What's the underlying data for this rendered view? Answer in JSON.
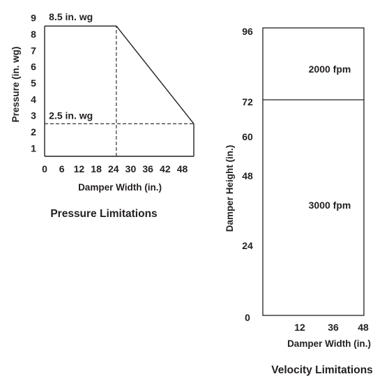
{
  "chart_data": [
    {
      "type": "line",
      "title": "Pressure Limitations",
      "xlabel": "Damper Width (in.)",
      "ylabel": "Pressure (in. wg)",
      "x_ticks": [
        "0",
        "6",
        "12",
        "18",
        "24",
        "30",
        "36",
        "42",
        "48"
      ],
      "y_ticks": [
        "1",
        "2",
        "3",
        "4",
        "5",
        "6",
        "7",
        "8",
        "9"
      ],
      "xlim": [
        0,
        52
      ],
      "ylim": [
        0.5,
        9.5
      ],
      "series": [
        {
          "x": [
            0,
            25,
            52
          ],
          "y": [
            8.5,
            8.5,
            2.5
          ]
        }
      ],
      "boundary": {
        "x": [
          0,
          52
        ],
        "y_bottom": 0.5
      },
      "reference_lines": [
        {
          "orientation": "vertical",
          "x": 25,
          "from": 0.5,
          "to": 8.5,
          "style": "dashed"
        },
        {
          "orientation": "horizontal",
          "y": 2.5,
          "from": 0,
          "to": 52,
          "style": "dashed"
        }
      ],
      "annotations": [
        {
          "text": "8.5 in. wg",
          "x": 1.5,
          "y": 8.85
        },
        {
          "text": "2.5 in. wg",
          "x": 1.5,
          "y": 2.8
        }
      ]
    },
    {
      "type": "area",
      "title": "Velocity Limitations",
      "xlabel": "Damper Width (in.)",
      "ylabel": "Damper Height (in.)",
      "x_ticks": [
        "12",
        "36",
        "48"
      ],
      "y_ticks": [
        "0",
        "24",
        "48",
        "60",
        "72",
        "96"
      ],
      "xlim": [
        0,
        48
      ],
      "ylim": [
        0,
        96
      ],
      "regions": [
        {
          "label": "2000 fpm",
          "y_from": 72,
          "y_to": 96
        },
        {
          "label": "3000 fpm",
          "y_from": 0,
          "y_to": 72
        }
      ],
      "divider_y": 72
    }
  ]
}
